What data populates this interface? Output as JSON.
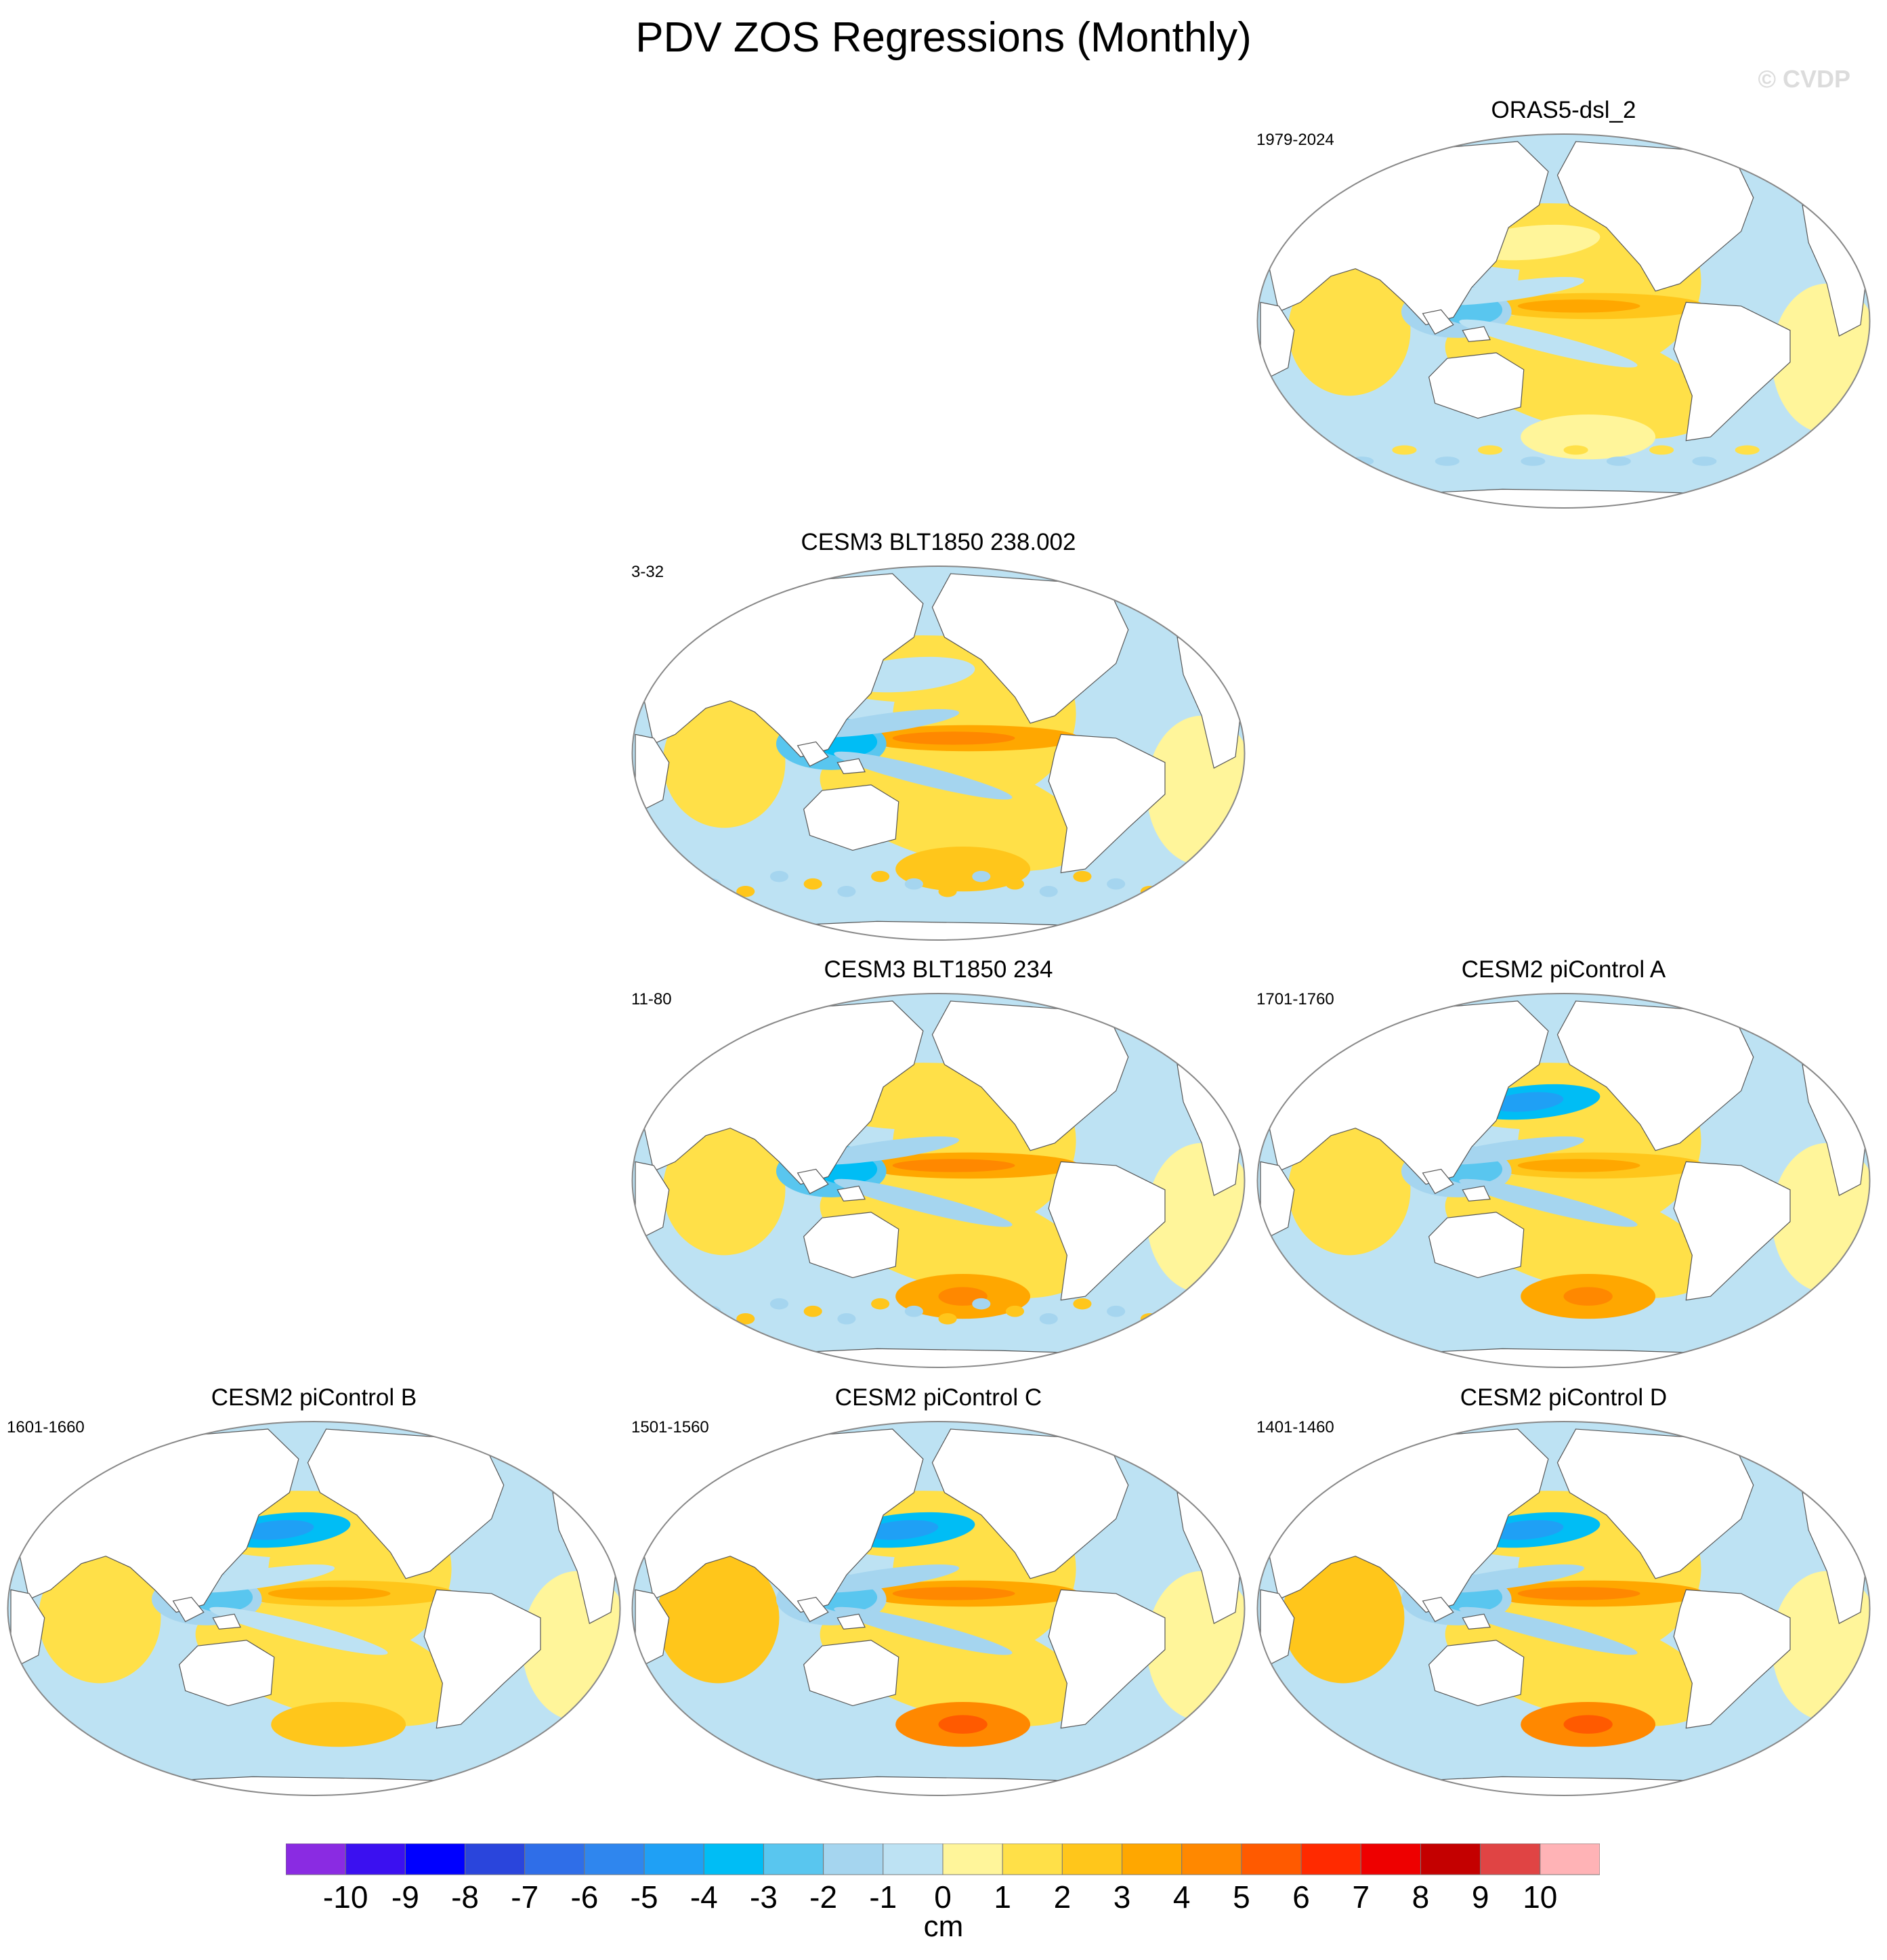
{
  "figure": {
    "title": "PDV ZOS Regressions (Monthly)",
    "watermark": "© CVDP"
  },
  "chart_data": {
    "type": "heatmap",
    "title": "PDV ZOS Regressions (Monthly)",
    "map_projection": "Robinson (Pacific-centered)",
    "variable": "ZOS",
    "units": "cm",
    "colorbar": {
      "levels": [
        -10,
        -9,
        -8,
        -7,
        -6,
        -5,
        -4,
        -3,
        -2,
        -1,
        0,
        1,
        2,
        3,
        4,
        5,
        6,
        7,
        8,
        9,
        10
      ],
      "colors": [
        "#8a2be2",
        "#3b10f0",
        "#0000ff",
        "#2a45dc",
        "#2f6ee8",
        "#2f86ee",
        "#1fa0f5",
        "#00bdf5",
        "#59c6ef",
        "#a5d5ef",
        "#bde2f3",
        "#fff59a",
        "#ffe048",
        "#ffc61b",
        "#ffa700",
        "#ff8800",
        "#ff5a00",
        "#ff2a00",
        "#ee0000",
        "#c40000",
        "#e04444",
        "#ffb3b6"
      ],
      "units_label": "cm"
    },
    "panels": [
      {
        "title": "ORAS5-dsl_2",
        "years": "1979-2024",
        "pattern": "obs",
        "features": {
          "trop_east": 2,
          "subtrop_north_west": -1,
          "wp": -3,
          "np": 0,
          "so": 0,
          "io": 1
        }
      },
      {
        "title": "CESM3 BLT1850 238.002",
        "years": "3-32",
        "pattern": "model_noisy",
        "features": {
          "trop_east": 3,
          "subtrop_north_west": -2,
          "wp": -4,
          "np": -1,
          "so": 2,
          "io": 1
        }
      },
      {
        "title": "CESM3 BLT1850 234",
        "years": "11-80",
        "pattern": "model_noisy",
        "features": {
          "trop_east": 3,
          "subtrop_north_west": -2,
          "wp": -4,
          "np": 1,
          "so": 3,
          "io": 2
        }
      },
      {
        "title": "CESM2 piControl A",
        "years": "1701-1760",
        "pattern": "model_smooth",
        "features": {
          "trop_east": 2,
          "subtrop_north_west": -2,
          "wp": -3,
          "np": -4,
          "so": 3,
          "io": 1
        }
      },
      {
        "title": "CESM2 piControl B",
        "years": "1601-1660",
        "pattern": "model_smooth",
        "features": {
          "trop_east": 2,
          "subtrop_north_west": -1,
          "wp": -3,
          "np": -4,
          "so": 2,
          "io": 1
        }
      },
      {
        "title": "CESM2 piControl C",
        "years": "1501-1560",
        "pattern": "model_smooth",
        "features": {
          "trop_east": 3,
          "subtrop_north_west": -2,
          "wp": -3,
          "np": -4,
          "so": 4,
          "io": 3
        }
      },
      {
        "title": "CESM2 piControl D",
        "years": "1401-1460",
        "pattern": "model_smooth",
        "features": {
          "trop_east": 3,
          "subtrop_north_west": -2,
          "wp": -3,
          "np": -4,
          "so": 4,
          "io": 3
        }
      }
    ]
  }
}
